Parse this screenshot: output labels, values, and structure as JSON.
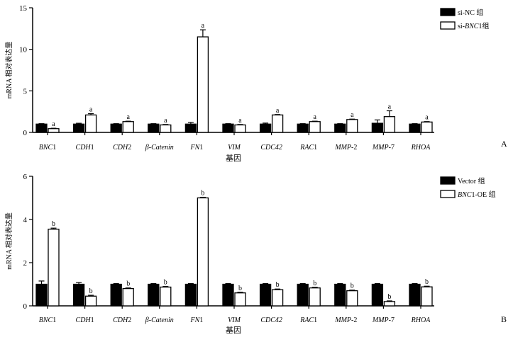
{
  "chart_data": [
    {
      "type": "bar",
      "panel_label": "A",
      "categories": [
        {
          "pre": "",
          "italic": "BNC",
          "post": "1"
        },
        {
          "pre": "",
          "italic": "CDH",
          "post": "1"
        },
        {
          "pre": "",
          "italic": "CDH",
          "post": "2"
        },
        {
          "pre": "",
          "italic": "β-Catenin",
          "post": ""
        },
        {
          "pre": "",
          "italic": "FN",
          "post": "1"
        },
        {
          "pre": "",
          "italic": "VIM",
          "post": ""
        },
        {
          "pre": "",
          "italic": "CDC42",
          "post": ""
        },
        {
          "pre": "",
          "italic": "RAC",
          "post": "1"
        },
        {
          "pre": "",
          "italic": "MMP-",
          "post": "2"
        },
        {
          "pre": "",
          "italic": "MMP-",
          "post": "7"
        },
        {
          "pre": "",
          "italic": "RHOA",
          "post": ""
        }
      ],
      "series": [
        {
          "legend": {
            "pre": "si-NC 组",
            "italic": "",
            "post": ""
          },
          "color": "#000000",
          "values": [
            1.0,
            1.0,
            1.0,
            1.0,
            1.0,
            1.0,
            1.0,
            1.0,
            1.0,
            1.1,
            1.0
          ],
          "errors": [
            0.05,
            0.1,
            0.05,
            0.05,
            0.2,
            0.05,
            0.12,
            0.05,
            0.05,
            0.4,
            0.05
          ],
          "significance": [
            "",
            "",
            "",
            "",
            "",
            "",
            "",
            "",
            "",
            "",
            ""
          ]
        },
        {
          "legend": {
            "pre": "si-",
            "italic": "BNC",
            "post": "1组"
          },
          "color": "#ffffff",
          "values": [
            0.45,
            2.1,
            1.3,
            0.9,
            11.5,
            0.9,
            2.1,
            1.3,
            1.55,
            1.9,
            1.25
          ],
          "errors": [
            0.05,
            0.15,
            0.05,
            0.05,
            0.85,
            0.05,
            0.05,
            0.05,
            0.05,
            0.7,
            0.05
          ],
          "significance": [
            "a",
            "a",
            "a",
            "a",
            "a",
            "a",
            "a",
            "a",
            "a",
            "a",
            "a"
          ]
        }
      ],
      "ylabel": "mRNA 相对表达量",
      "xlabel": "基因",
      "ylim": [
        0,
        15
      ],
      "yticks": [
        0,
        5,
        10,
        15
      ],
      "grid": false,
      "legend_position": "top-right"
    },
    {
      "type": "bar",
      "panel_label": "B",
      "categories": [
        {
          "pre": "",
          "italic": "BNC",
          "post": "1"
        },
        {
          "pre": "",
          "italic": "CDH",
          "post": "1"
        },
        {
          "pre": "",
          "italic": "CDH",
          "post": "2"
        },
        {
          "pre": "",
          "italic": "β-Catenin",
          "post": ""
        },
        {
          "pre": "",
          "italic": "FN",
          "post": "1"
        },
        {
          "pre": "",
          "italic": "VIM",
          "post": ""
        },
        {
          "pre": "",
          "italic": "CDC42",
          "post": ""
        },
        {
          "pre": "",
          "italic": "RAC",
          "post": "1"
        },
        {
          "pre": "",
          "italic": "MMP-",
          "post": "2"
        },
        {
          "pre": "",
          "italic": "MMP-",
          "post": "7"
        },
        {
          "pre": "",
          "italic": "RHOA",
          "post": ""
        }
      ],
      "series": [
        {
          "legend": {
            "pre": "Vector 组",
            "italic": "",
            "post": ""
          },
          "color": "#000000",
          "values": [
            1.0,
            1.0,
            1.0,
            1.0,
            1.0,
            1.0,
            1.0,
            1.0,
            1.0,
            1.0,
            1.0
          ],
          "errors": [
            0.15,
            0.08,
            0.03,
            0.03,
            0.03,
            0.03,
            0.03,
            0.03,
            0.03,
            0.03,
            0.03
          ],
          "significance": [
            "",
            "",
            "",
            "",
            "",
            "",
            "",
            "",
            "",
            "",
            ""
          ]
        },
        {
          "legend": {
            "pre": "",
            "italic": "BNC",
            "post": "1-OE 组"
          },
          "color": "#ffffff",
          "values": [
            3.55,
            0.45,
            0.8,
            0.87,
            5.0,
            0.6,
            0.75,
            0.83,
            0.7,
            0.2,
            0.88
          ],
          "errors": [
            0.05,
            0.04,
            0.03,
            0.03,
            0.03,
            0.03,
            0.03,
            0.03,
            0.03,
            0.03,
            0.03
          ],
          "significance": [
            "b",
            "b",
            "b",
            "b",
            "b",
            "b",
            "b",
            "b",
            "b",
            "b",
            "b"
          ]
        }
      ],
      "ylabel": "mRNA 相对表达量",
      "xlabel": "基因",
      "ylim": [
        0,
        6
      ],
      "yticks": [
        0,
        2,
        4,
        6
      ],
      "grid": false,
      "legend_position": "top-right"
    }
  ]
}
